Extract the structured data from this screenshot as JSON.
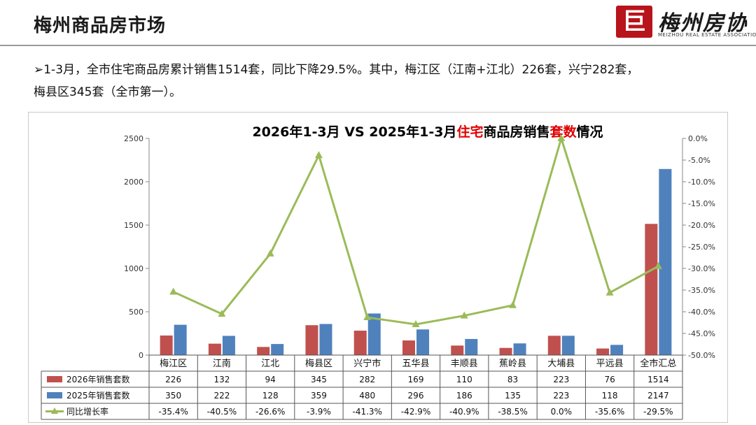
{
  "header": {
    "title": "梅州商品房市场",
    "logo_mark": "巨",
    "logo_text": "梅州房协",
    "logo_sub": "MEIZHOU REAL ESTATE ASSOCIATION"
  },
  "summary": {
    "line1": "➢1-3月，全市住宅商品房累计销售1514套，同比下降29.5%。其中，梅江区（江南+江北）226套，兴宁282套，",
    "line2": "梅县区345套（全市第一）。"
  },
  "chart_data": {
    "type": "bar",
    "title_parts": [
      {
        "text": "2026年1-3月 VS 2025年1-3月",
        "color": "#000000"
      },
      {
        "text": "住宅",
        "color": "#e00000"
      },
      {
        "text": "商品房销售",
        "color": "#000000"
      },
      {
        "text": "套数",
        "color": "#e00000"
      },
      {
        "text": "情况",
        "color": "#000000"
      }
    ],
    "categories": [
      "梅江区",
      "江南",
      "江北",
      "梅县区",
      "兴宁市",
      "五华县",
      "丰顺县",
      "蕉岭县",
      "大埔县",
      "平远县",
      "全市汇总"
    ],
    "series": [
      {
        "name": "2026年销售套数",
        "type": "bar",
        "color": "#c0504d",
        "values": [
          226,
          132,
          94,
          345,
          282,
          169,
          110,
          83,
          223,
          76,
          1514
        ],
        "labels": [
          "226",
          "132",
          "94",
          "345",
          "282",
          "169",
          "110",
          "83",
          "223",
          "76",
          "1514"
        ]
      },
      {
        "name": "2025年销售套数",
        "type": "bar",
        "color": "#4f81bd",
        "values": [
          350,
          222,
          128,
          359,
          480,
          296,
          186,
          135,
          223,
          118,
          2147
        ],
        "labels": [
          "350",
          "222",
          "128",
          "359",
          "480",
          "296",
          "186",
          "135",
          "223",
          "118",
          "2147"
        ]
      },
      {
        "name": "同比增长率",
        "type": "line",
        "color": "#9bbb59",
        "axis": "right",
        "values": [
          -35.4,
          -40.5,
          -26.6,
          -3.9,
          -41.3,
          -42.9,
          -40.9,
          -38.5,
          0.0,
          -35.6,
          -29.5
        ],
        "labels": [
          "-35.4%",
          "-40.5%",
          "-26.6%",
          "-3.9%",
          "-41.3%",
          "-42.9%",
          "-40.9%",
          "-38.5%",
          "0.0%",
          "-35.6%",
          "-29.5%"
        ]
      }
    ],
    "ylim": [
      0,
      2500
    ],
    "yticks": [
      "0",
      "500",
      "1000",
      "1500",
      "2000",
      "2500"
    ],
    "y2lim": [
      -50,
      0
    ],
    "y2ticks": [
      "0.0%",
      "-5.0%",
      "-10.0%",
      "-15.0%",
      "-20.0%",
      "-25.0%",
      "-30.0%",
      "-35.0%",
      "-40.0%",
      "-45.0%",
      "-50.0%"
    ],
    "grid": false,
    "legend": "data-table"
  }
}
